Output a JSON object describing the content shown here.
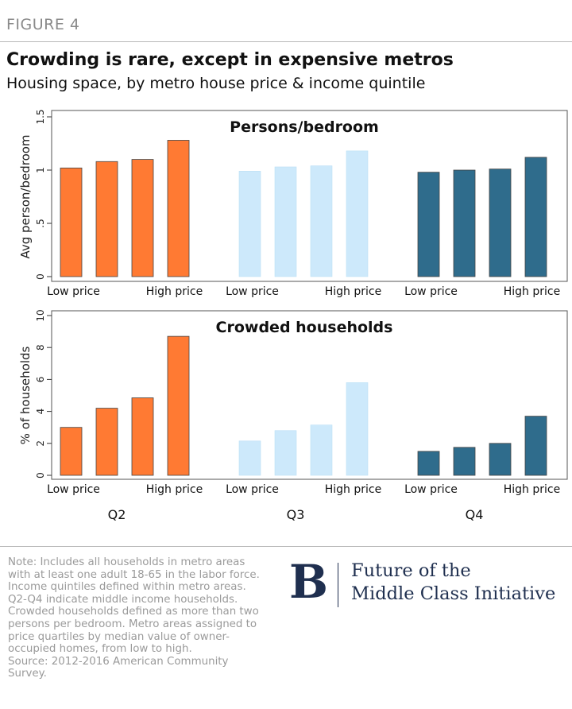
{
  "figure_label": "FIGURE 4",
  "title": "Crowding is rare, except in expensive metros",
  "subtitle": "Housing space, by metro house price & income quintile",
  "chart_data": [
    {
      "type": "bar",
      "title": "Persons/bedroom",
      "ylabel": "Avg person/bedroom",
      "ylim": [
        0,
        1.5
      ],
      "yticks": [
        0,
        0.5,
        1,
        1.5
      ],
      "ytick_labels": [
        "0",
        ".5",
        "1",
        "1.5"
      ],
      "groups": [
        "Q2",
        "Q3",
        "Q4"
      ],
      "group_show_labels": false,
      "category_labels": [
        "Low price",
        "High price"
      ],
      "series": [
        {
          "values": [
            1.02,
            1.08,
            1.1,
            1.28
          ]
        },
        {
          "values": [
            0.99,
            1.03,
            1.04,
            1.18
          ]
        },
        {
          "values": [
            0.98,
            1.0,
            1.01,
            1.12
          ]
        }
      ],
      "colors": [
        "#ff7a33",
        "#cde9fb",
        "#2f6c8c"
      ],
      "grid": false
    },
    {
      "type": "bar",
      "title": "Crowded households",
      "ylabel": "% of households",
      "ylim": [
        0,
        10
      ],
      "yticks": [
        0,
        2,
        4,
        6,
        8,
        10
      ],
      "ytick_labels": [
        "0",
        "2",
        "4",
        "6",
        "8",
        "10"
      ],
      "groups": [
        "Q2",
        "Q3",
        "Q4"
      ],
      "group_show_labels": true,
      "category_labels": [
        "Low price",
        "High price"
      ],
      "series": [
        {
          "values": [
            3.0,
            4.2,
            4.85,
            8.7
          ]
        },
        {
          "values": [
            2.15,
            2.8,
            3.15,
            5.8
          ]
        },
        {
          "values": [
            1.5,
            1.75,
            2.0,
            3.7
          ]
        }
      ],
      "colors": [
        "#ff7a33",
        "#cde9fb",
        "#2f6c8c"
      ],
      "grid": false
    }
  ],
  "note_lines": [
    "Note: Includes all households in metro areas",
    "with at least one adult 18-65 in the labor force.",
    "Income quintiles defined within metro areas.",
    "Q2-Q4 indicate middle income households.",
    "Crowded households defined as more than two",
    "persons per bedroom. Metro areas assigned to",
    "price quartiles by median value of owner-",
    "occupied homes, from low to high.",
    "Source: 2012-2016 American Community",
    "Survey."
  ],
  "logo": {
    "letter": "B",
    "line1": "Future of the",
    "line2": "Middle Class Initiative"
  }
}
